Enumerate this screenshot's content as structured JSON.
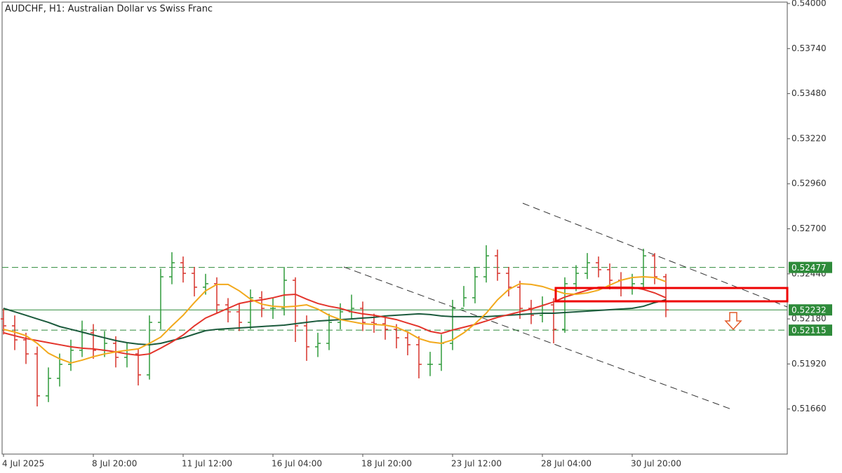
{
  "chart_data": {
    "type": "ohlc",
    "title": "AUDCHF, H1:  Australian Dollar vs Swiss Franc",
    "categories": [
      "4 Jul 2025",
      null,
      null,
      null,
      null,
      null,
      null,
      null,
      "8 Jul 20:00",
      null,
      null,
      null,
      null,
      null,
      null,
      null,
      "11 Jul 12:00",
      null,
      null,
      null,
      null,
      null,
      null,
      null,
      "16 Jul 04:00",
      null,
      null,
      null,
      null,
      null,
      null,
      null,
      "18 Jul 20:00",
      null,
      null,
      null,
      null,
      null,
      null,
      null,
      "23 Jul 12:00",
      null,
      null,
      null,
      null,
      null,
      null,
      null,
      "28 Jul 04:00",
      null,
      null,
      null,
      null,
      null,
      null,
      null,
      "30 Jul 20:00",
      null,
      null,
      null
    ],
    "open": [
      0.5218,
      0.5214,
      0.52059,
      0.51978,
      0.51736,
      0.51837,
      0.51918,
      0.51999,
      0.521,
      0.51999,
      0.52039,
      0.51958,
      0.51978,
      0.51857,
      0.5216,
      0.52423,
      0.52504,
      0.52443,
      0.52363,
      0.52383,
      0.52261,
      0.52221,
      0.5216,
      0.52302,
      0.52241,
      0.52241,
      0.52403,
      0.5214,
      0.52019,
      0.52039,
      0.5216,
      0.52221,
      0.52241,
      0.5216,
      0.52152,
      0.5212,
      0.52071,
      0.52031,
      0.51918,
      0.51918,
      0.52039,
      0.52241,
      0.52302,
      0.52423,
      0.52544,
      0.52443,
      0.52363,
      0.52241,
      0.52201,
      0.52261,
      0.5212,
      0.52383,
      0.52443,
      0.52504,
      0.52464,
      0.52403,
      0.52363,
      0.52383,
      0.52544,
      0.52423
    ],
    "high": [
      0.5224,
      0.522,
      0.521,
      0.5202,
      0.519,
      0.5198,
      0.5206,
      0.5217,
      0.5215,
      0.5211,
      0.5208,
      0.5204,
      0.5201,
      0.522,
      0.5247,
      0.52565,
      0.5254,
      0.5248,
      0.5244,
      0.5242,
      0.523,
      0.5227,
      0.5235,
      0.5234,
      0.523,
      0.5248,
      0.5242,
      0.522,
      0.521,
      0.5221,
      0.5227,
      0.5232,
      0.5228,
      0.5221,
      0.5219,
      0.5215,
      0.5211,
      0.5208,
      0.5199,
      0.5209,
      0.5229,
      0.5237,
      0.5248,
      0.52605,
      0.5258,
      0.5248,
      0.524,
      0.5229,
      0.5231,
      0.523,
      0.5242,
      0.5249,
      0.5256,
      0.5254,
      0.525,
      0.5245,
      0.5244,
      0.52585,
      0.5256,
      0.5244
    ],
    "low": [
      0.5209,
      0.52,
      0.5192,
      0.51675,
      0.517,
      0.5179,
      0.5188,
      0.5196,
      0.5195,
      0.5196,
      0.519,
      0.519,
      0.51796,
      0.5183,
      0.5212,
      0.5238,
      0.5239,
      0.5231,
      0.5232,
      0.5221,
      0.5216,
      0.5211,
      0.5212,
      0.5219,
      0.5218,
      0.522,
      0.52047,
      0.51938,
      0.5196,
      0.52,
      0.5212,
      0.5218,
      0.5211,
      0.521,
      0.5206,
      0.5201,
      0.5197,
      0.51837,
      0.5185,
      0.5188,
      0.52,
      0.5225,
      0.5227,
      0.5239,
      0.524,
      0.5231,
      0.5218,
      0.5215,
      0.5216,
      0.52039,
      0.521,
      0.5234,
      0.5241,
      0.5242,
      0.5235,
      0.5231,
      0.5232,
      0.5235,
      0.5238,
      0.5219
    ],
    "close": [
      0.5214,
      0.52059,
      0.51978,
      0.51736,
      0.51837,
      0.51918,
      0.51999,
      0.521,
      0.51999,
      0.52039,
      0.51958,
      0.51978,
      0.51857,
      0.5216,
      0.52423,
      0.52504,
      0.52443,
      0.52363,
      0.52383,
      0.52261,
      0.52221,
      0.5216,
      0.52302,
      0.52241,
      0.52241,
      0.52403,
      0.5214,
      0.52019,
      0.52039,
      0.5216,
      0.52221,
      0.52241,
      0.5216,
      0.52152,
      0.5212,
      0.52071,
      0.52031,
      0.51918,
      0.51918,
      0.52039,
      0.52241,
      0.52302,
      0.52423,
      0.52544,
      0.52443,
      0.52363,
      0.52241,
      0.52201,
      0.52261,
      0.5212,
      0.52383,
      0.52443,
      0.52504,
      0.52464,
      0.52403,
      0.52363,
      0.52383,
      0.52544,
      0.52423,
      0.52232
    ],
    "up_color": "#2f9a3a",
    "down_color": "#d7322b",
    "overlays": [
      {
        "color": "#1b5a3c",
        "values": [
          0.52241,
          0.52221,
          0.52201,
          0.5218,
          0.5216,
          0.52136,
          0.5212,
          0.52104,
          0.52087,
          0.52071,
          0.52055,
          0.52043,
          0.52035,
          0.52031,
          0.52039,
          0.52055,
          0.52071,
          0.52092,
          0.52112,
          0.5212,
          0.52124,
          0.52128,
          0.52132,
          0.52136,
          0.5214,
          0.52144,
          0.52152,
          0.5216,
          0.52168,
          0.52172,
          0.52176,
          0.5218,
          0.52185,
          0.52189,
          0.52197,
          0.52201,
          0.52205,
          0.52209,
          0.52205,
          0.52197,
          0.52193,
          0.52193,
          0.52193,
          0.52193,
          0.52197,
          0.52201,
          0.52205,
          0.52209,
          0.52213,
          0.52213,
          0.52217,
          0.52221,
          0.52225,
          0.52229,
          0.52233,
          0.52237,
          0.52241,
          0.52253,
          0.52274,
          0.5229
        ]
      },
      {
        "color": "#e3342b",
        "values": [
          0.521,
          0.52083,
          0.52067,
          0.52055,
          0.52043,
          0.52031,
          0.52019,
          0.52011,
          0.52007,
          0.51999,
          0.5199,
          0.51978,
          0.5197,
          0.51978,
          0.52011,
          0.52047,
          0.52087,
          0.5214,
          0.52185,
          0.52213,
          0.52241,
          0.52269,
          0.52282,
          0.5229,
          0.52302,
          0.52318,
          0.52322,
          0.52294,
          0.52269,
          0.52253,
          0.52241,
          0.52221,
          0.52209,
          0.52201,
          0.52189,
          0.52176,
          0.52156,
          0.52136,
          0.52108,
          0.52096,
          0.52116,
          0.52132,
          0.52148,
          0.52168,
          0.52189,
          0.52205,
          0.52221,
          0.52237,
          0.52257,
          0.52278,
          0.52306,
          0.52326,
          0.52346,
          0.52363,
          0.52363,
          0.52363,
          0.52363,
          0.5235,
          0.5233,
          0.52302
        ]
      },
      {
        "color": "#f2a91c",
        "values": [
          0.5212,
          0.52104,
          0.52083,
          0.52039,
          0.51982,
          0.5195,
          0.51926,
          0.51942,
          0.51962,
          0.51978,
          0.5199,
          0.51999,
          0.52007,
          0.52039,
          0.52075,
          0.5214,
          0.52201,
          0.52274,
          0.52342,
          0.52379,
          0.52379,
          0.52342,
          0.52294,
          0.52265,
          0.52253,
          0.52249,
          0.52253,
          0.52261,
          0.52237,
          0.52201,
          0.52176,
          0.52164,
          0.52152,
          0.52148,
          0.52144,
          0.52132,
          0.52104,
          0.52067,
          0.52047,
          0.52039,
          0.52059,
          0.521,
          0.52152,
          0.52213,
          0.5229,
          0.5235,
          0.52383,
          0.52379,
          0.52367,
          0.52346,
          0.52326,
          0.52322,
          0.5233,
          0.52346,
          0.52375,
          0.52403,
          0.52419,
          0.52423,
          0.52419,
          0.52395
        ]
      }
    ],
    "levels": [
      {
        "value": 0.52477,
        "style": "dashed",
        "color": "#2e8b3a"
      },
      {
        "value": 0.52232,
        "style": "solid",
        "color": "#2e8b3a"
      },
      {
        "value": 0.52115,
        "style": "dashed",
        "color": "#2e8b3a"
      }
    ],
    "ylim": [
      0.514,
      0.54
    ],
    "yticks": [
      {
        "value": 0.5166,
        "label": "0.51660"
      },
      {
        "value": 0.5192,
        "label": "0.51920"
      },
      {
        "value": 0.5218,
        "label": "0.52180"
      },
      {
        "value": 0.5244,
        "label": "0.52440"
      },
      {
        "value": 0.527,
        "label": "0.52700"
      },
      {
        "value": 0.5296,
        "label": "0.52960"
      },
      {
        "value": 0.5322,
        "label": "0.53220"
      },
      {
        "value": 0.5348,
        "label": "0.53480"
      },
      {
        "value": 0.5374,
        "label": "0.53740"
      },
      {
        "value": 0.54,
        "label": "0.54000"
      }
    ]
  }
}
